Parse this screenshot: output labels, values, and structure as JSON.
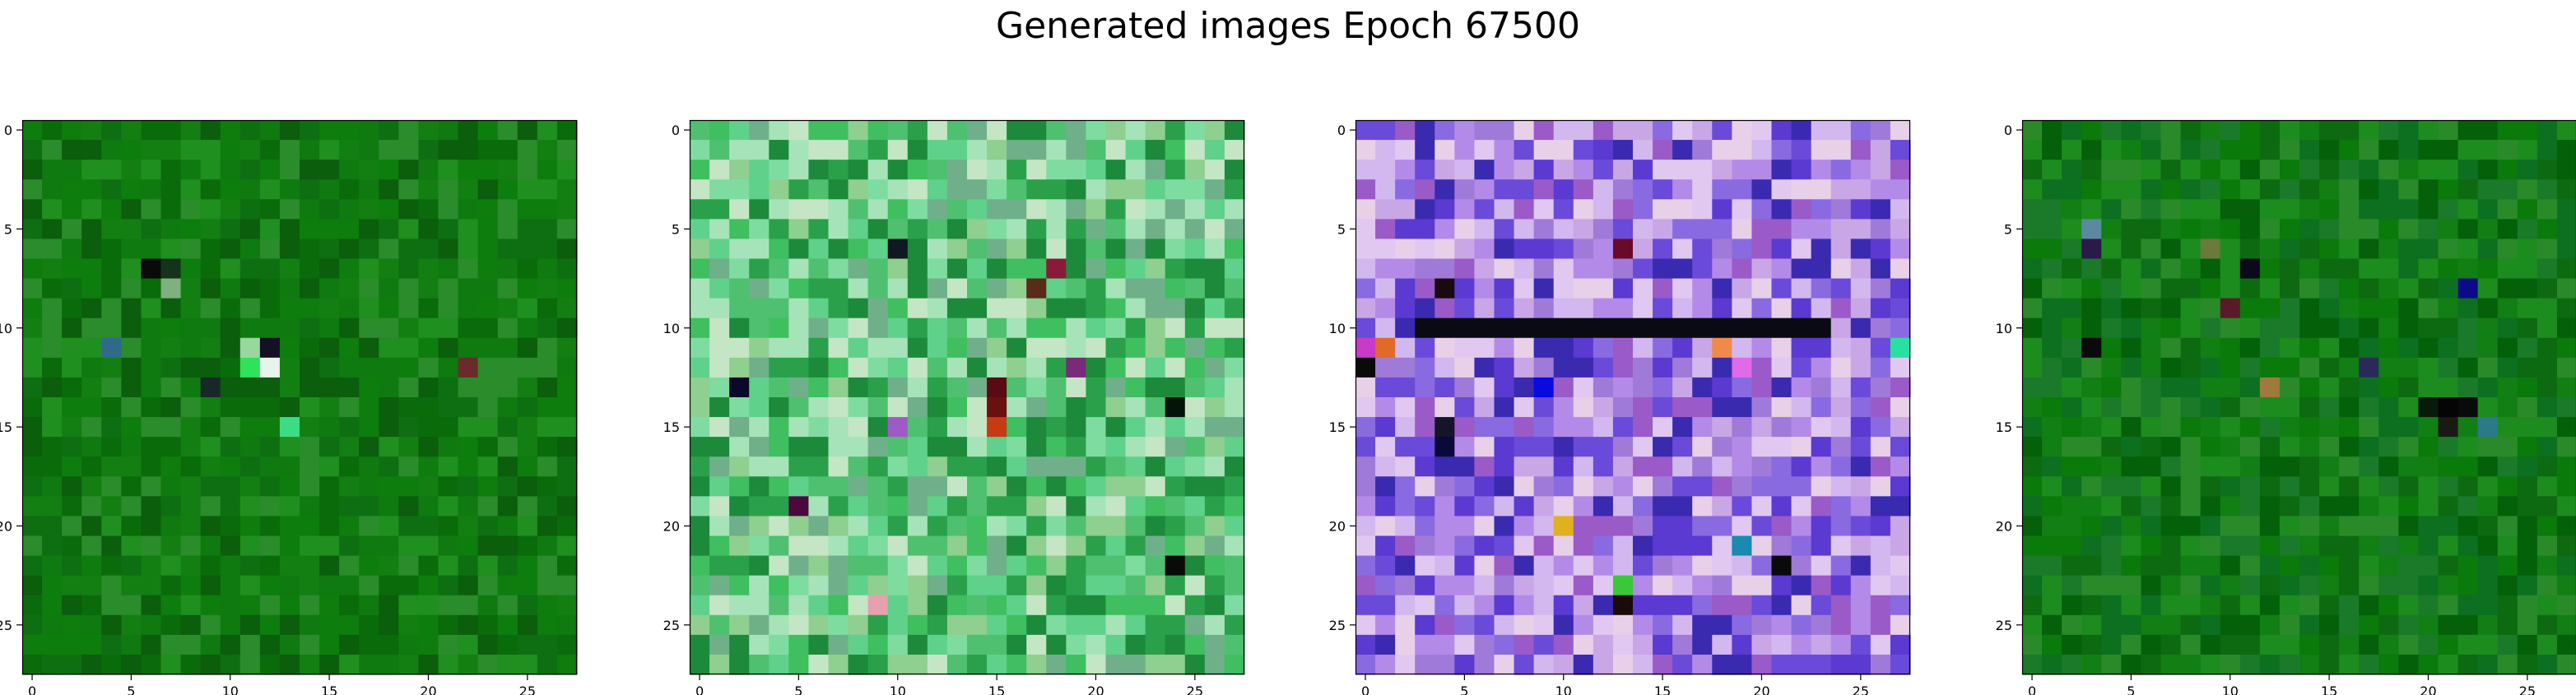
{
  "figure": {
    "title": "Generated images Epoch 67500"
  },
  "chart_data": [
    {
      "type": "heatmap",
      "title": "",
      "xlabel": "",
      "ylabel": "",
      "shape": [
        28,
        28,
        3
      ],
      "x_ticks": [
        0,
        5,
        10,
        15,
        20,
        25
      ],
      "y_ticks": [
        0,
        5,
        10,
        15,
        20,
        25
      ],
      "xlim": [
        -0.5,
        27.5
      ],
      "ylim": [
        27.5,
        -0.5
      ],
      "y_inverted": true,
      "grid": false,
      "palette": [
        "#0f7a0f",
        "#0a6b0a",
        "#137f13",
        "#0b5e0b",
        "#1f8f1f",
        "#0d7d0d",
        "#0e6f12",
        "#2a8c2a"
      ],
      "accents": [
        {
          "row": 7,
          "col": 6,
          "color": "#0a0a0a"
        },
        {
          "row": 7,
          "col": 7,
          "color": "#15321a"
        },
        {
          "row": 8,
          "col": 7,
          "color": "#7fb07f"
        },
        {
          "row": 11,
          "col": 4,
          "color": "#2f6a8a"
        },
        {
          "row": 11,
          "col": 11,
          "color": "#9ad6a0"
        },
        {
          "row": 11,
          "col": 12,
          "color": "#121222"
        },
        {
          "row": 12,
          "col": 11,
          "color": "#2fe25a"
        },
        {
          "row": 12,
          "col": 12,
          "color": "#e6f5ec"
        },
        {
          "row": 13,
          "col": 9,
          "color": "#182828"
        },
        {
          "row": 12,
          "col": 22,
          "color": "#6b2b2b"
        },
        {
          "row": 15,
          "col": 13,
          "color": "#3bdc84"
        }
      ]
    },
    {
      "type": "heatmap",
      "title": "",
      "xlabel": "",
      "ylabel": "",
      "shape": [
        28,
        28,
        3
      ],
      "x_ticks": [
        0,
        5,
        10,
        15,
        20,
        25
      ],
      "y_ticks": [
        0,
        5,
        10,
        15,
        20,
        25
      ],
      "xlim": [
        -0.5,
        27.5
      ],
      "ylim": [
        27.5,
        -0.5
      ],
      "y_inverted": true,
      "grid": false,
      "palette": [
        "#3fbf5f",
        "#5fd18a",
        "#2aa04a",
        "#7fdca0",
        "#a6e3b8",
        "#1c8a3a",
        "#8fcf8f",
        "#4fc070",
        "#c4e6c4",
        "#6fb08a"
      ],
      "accents": [
        {
          "row": 6,
          "col": 10,
          "color": "#101820"
        },
        {
          "row": 7,
          "col": 18,
          "color": "#8a1a3a"
        },
        {
          "row": 8,
          "col": 17,
          "color": "#5a2a1a"
        },
        {
          "row": 12,
          "col": 19,
          "color": "#7a2a7a"
        },
        {
          "row": 13,
          "col": 2,
          "color": "#0a0a28"
        },
        {
          "row": 13,
          "col": 15,
          "color": "#5a0a14"
        },
        {
          "row": 14,
          "col": 15,
          "color": "#6a1010"
        },
        {
          "row": 14,
          "col": 24,
          "color": "#05140a"
        },
        {
          "row": 15,
          "col": 15,
          "color": "#c83a14"
        },
        {
          "row": 15,
          "col": 10,
          "color": "#a05ac8"
        },
        {
          "row": 19,
          "col": 5,
          "color": "#4a0a40"
        },
        {
          "row": 22,
          "col": 24,
          "color": "#0a0a0a"
        },
        {
          "row": 24,
          "col": 9,
          "color": "#e6a0b0"
        }
      ]
    },
    {
      "type": "heatmap",
      "title": "",
      "xlabel": "",
      "ylabel": "",
      "shape": [
        28,
        28,
        3
      ],
      "x_ticks": [
        0,
        5,
        10,
        15,
        20,
        25
      ],
      "y_ticks": [
        0,
        5,
        10,
        15,
        20,
        25
      ],
      "xlim": [
        -0.5,
        27.5
      ],
      "ylim": [
        27.5,
        -0.5
      ],
      "y_inverted": true,
      "grid": false,
      "palette": [
        "#c9a6e6",
        "#8a6ae0",
        "#5a3ad0",
        "#b48ae8",
        "#e0c8f0",
        "#3a2ab0",
        "#9a5ac8",
        "#d2b8ee",
        "#6a4ad8",
        "#a07ad8",
        "#e8d0e8"
      ],
      "dark_rows": [
        10
      ],
      "dark_color": "#0a0a14",
      "accents": [
        {
          "row": 6,
          "col": 13,
          "color": "#6a0a2a"
        },
        {
          "row": 8,
          "col": 4,
          "color": "#1a0a10"
        },
        {
          "row": 11,
          "col": 0,
          "color": "#c83ac8"
        },
        {
          "row": 11,
          "col": 1,
          "color": "#e06a2a"
        },
        {
          "row": 11,
          "col": 18,
          "color": "#f08a4a"
        },
        {
          "row": 11,
          "col": 27,
          "color": "#2ae0a0"
        },
        {
          "row": 12,
          "col": 0,
          "color": "#0a0a0a"
        },
        {
          "row": 12,
          "col": 19,
          "color": "#e06ae8"
        },
        {
          "row": 13,
          "col": 9,
          "color": "#0a0ae0"
        },
        {
          "row": 15,
          "col": 4,
          "color": "#14142a"
        },
        {
          "row": 16,
          "col": 4,
          "color": "#0a0a3a"
        },
        {
          "row": 20,
          "col": 10,
          "color": "#e0b020"
        },
        {
          "row": 21,
          "col": 19,
          "color": "#1a8ab0"
        },
        {
          "row": 22,
          "col": 21,
          "color": "#0a0a0a"
        },
        {
          "row": 23,
          "col": 13,
          "color": "#3ac83a"
        },
        {
          "row": 24,
          "col": 13,
          "color": "#1a0a0a"
        }
      ]
    },
    {
      "type": "heatmap",
      "title": "",
      "xlabel": "",
      "ylabel": "",
      "shape": [
        28,
        28,
        3
      ],
      "x_ticks": [
        0,
        5,
        10,
        15,
        20,
        25
      ],
      "y_ticks": [
        0,
        5,
        10,
        15,
        20,
        25
      ],
      "xlim": [
        -0.5,
        27.5
      ],
      "ylim": [
        27.5,
        -0.5
      ],
      "y_inverted": true,
      "grid": false,
      "palette": [
        "#0a7a0a",
        "#117f14",
        "#0d6a10",
        "#1c8c1f",
        "#05600a",
        "#1a7a2a",
        "#2a8a2a",
        "#0c7020"
      ],
      "accents": [
        {
          "row": 5,
          "col": 3,
          "color": "#5a8aa0"
        },
        {
          "row": 6,
          "col": 3,
          "color": "#2a1a4a"
        },
        {
          "row": 6,
          "col": 9,
          "color": "#6a7a3a"
        },
        {
          "row": 7,
          "col": 11,
          "color": "#0a0a1a"
        },
        {
          "row": 8,
          "col": 22,
          "color": "#0a0a8a"
        },
        {
          "row": 9,
          "col": 10,
          "color": "#5a1a2a"
        },
        {
          "row": 11,
          "col": 3,
          "color": "#0a0a0a"
        },
        {
          "row": 12,
          "col": 17,
          "color": "#2a2a5a"
        },
        {
          "row": 13,
          "col": 12,
          "color": "#a07a3a"
        },
        {
          "row": 14,
          "col": 20,
          "color": "#0a1a0a"
        },
        {
          "row": 14,
          "col": 21,
          "color": "#050505"
        },
        {
          "row": 14,
          "col": 22,
          "color": "#0a0a0a"
        },
        {
          "row": 15,
          "col": 21,
          "color": "#1a1a14"
        },
        {
          "row": 15,
          "col": 23,
          "color": "#2a7a8a"
        }
      ]
    }
  ]
}
